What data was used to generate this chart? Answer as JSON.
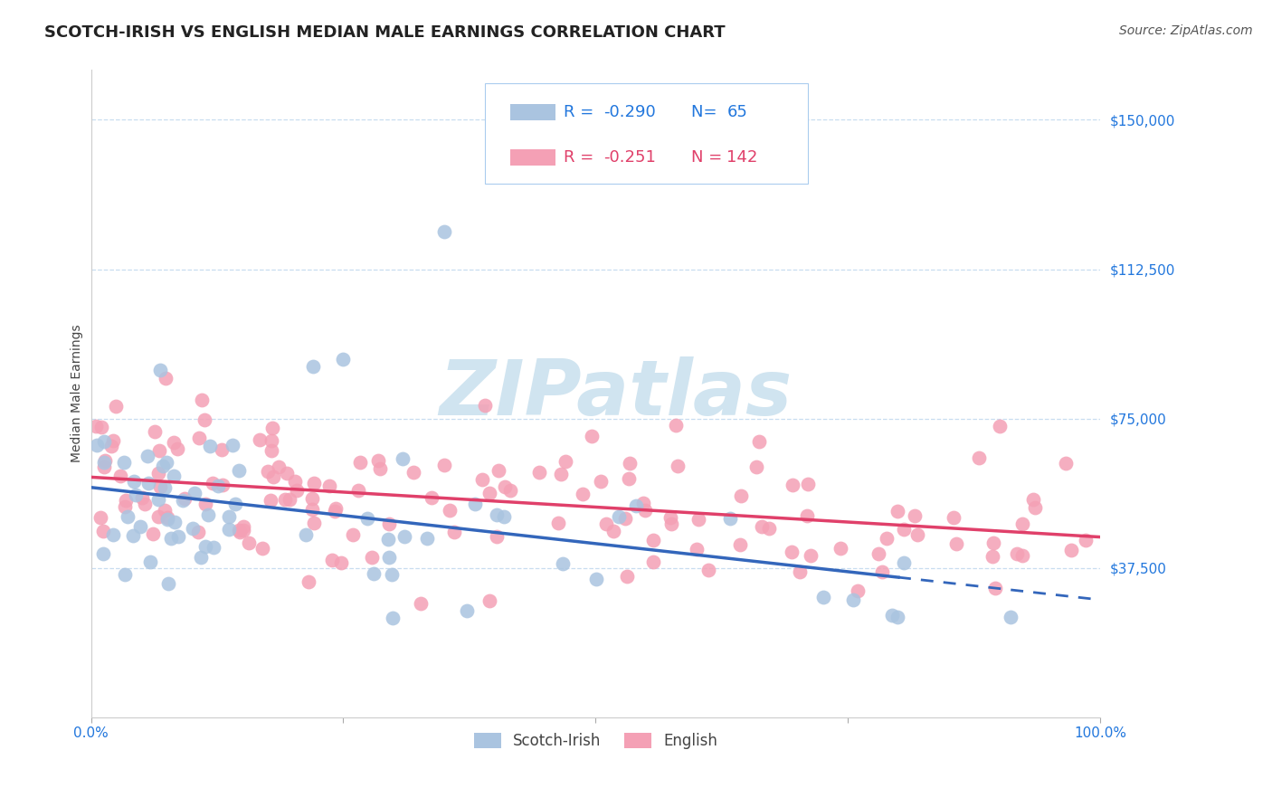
{
  "title": "SCOTCH-IRISH VS ENGLISH MEDIAN MALE EARNINGS CORRELATION CHART",
  "source_text": "Source: ZipAtlas.com",
  "ylabel": "Median Male Earnings",
  "ytick_labels": [
    "$37,500",
    "$75,000",
    "$112,500",
    "$150,000"
  ],
  "ytick_values": [
    37500,
    75000,
    112500,
    150000
  ],
  "xlim": [
    0,
    100
  ],
  "ylim": [
    0,
    162500
  ],
  "scotch_irish_R": -0.29,
  "scotch_irish_N": 65,
  "english_R": -0.251,
  "english_N": 142,
  "scotch_irish_color": "#aac4e0",
  "english_color": "#f4a0b5",
  "scotch_irish_line_color": "#3366bb",
  "english_line_color": "#e0406a",
  "background_color": "#ffffff",
  "watermark_color": "#d0e4f0",
  "title_fontsize": 13,
  "axis_label_fontsize": 10,
  "tick_label_fontsize": 11,
  "legend_fontsize": 13
}
